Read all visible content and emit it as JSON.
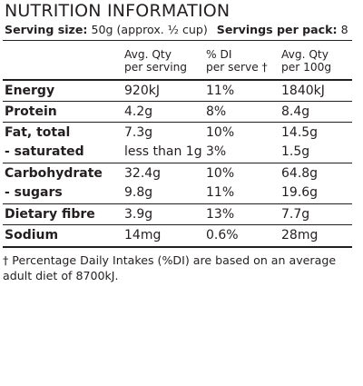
{
  "title": "NUTRITION INFORMATION",
  "serving_size_label": "Serving size:",
  "serving_size_value": "50g (approx. ½ cup)",
  "servings_per_pack_label": "Servings per pack:",
  "servings_per_pack_value": "8",
  "columns": {
    "avg_qty_serving": "Avg. Qty\nper serving",
    "percent_di": "% DI\nper serve †",
    "avg_qty_100g": "Avg. Qty\nper 100g"
  },
  "rows": [
    {
      "label": "Energy",
      "per_serving": "920kJ",
      "di": "11%",
      "per_100g": "1840kJ"
    },
    {
      "label": "Protein",
      "per_serving": "4.2g",
      "di": "8%",
      "per_100g": "8.4g"
    },
    {
      "label": "Fat, total",
      "per_serving": "7.3g",
      "di": "10%",
      "per_100g": "14.5g"
    },
    {
      "label": "-  saturated",
      "per_serving": "less than 1g",
      "di": "3%",
      "per_100g": "1.5g"
    },
    {
      "label": "Carbohydrate",
      "per_serving": "32.4g",
      "di": "10%",
      "per_100g": "64.8g"
    },
    {
      "label": "-  sugars",
      "per_serving": "9.8g",
      "di": "11%",
      "per_100g": "19.6g"
    },
    {
      "label": "Dietary fibre",
      "per_serving": "3.9g",
      "di": "13%",
      "per_100g": "7.7g"
    },
    {
      "label": "Sodium",
      "per_serving": "14mg",
      "di": "0.6%",
      "per_100g": "28mg"
    }
  ],
  "footnote": "† Percentage Daily Intakes (%DI) are based on an average adult diet of 8700kJ."
}
